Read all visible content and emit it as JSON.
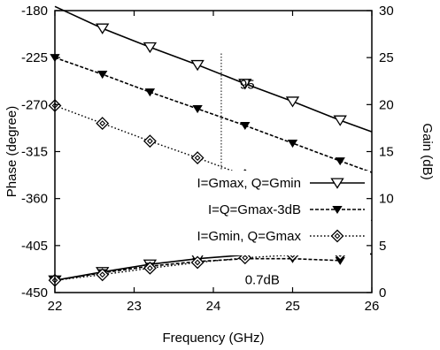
{
  "chart_data": {
    "type": "line",
    "x_axis": {
      "label": "Frequency (GHz)",
      "range": [
        22,
        26
      ],
      "ticks": [
        22,
        23,
        24,
        25,
        26
      ]
    },
    "y_left_axis": {
      "label": "Phase (degree)",
      "range": [
        -450,
        -180
      ],
      "ticks": [
        -180,
        -225,
        -270,
        -315,
        -360,
        -405,
        -450
      ]
    },
    "y_right_axis": {
      "label": "Gain (dB)",
      "range": [
        0,
        30
      ],
      "ticks": [
        0,
        5,
        10,
        15,
        20,
        25,
        30
      ]
    },
    "grid": false,
    "legend_position": "center-right",
    "series": [
      {
        "name": "I=Gmax, Q=Gmin",
        "axis": "left",
        "style": "solid",
        "marker": "triangle-down-open",
        "x": [
          22,
          22.6,
          23.2,
          23.8,
          24.4,
          25.0,
          25.6,
          26
        ],
        "values": [
          -176,
          -197,
          -215,
          -232,
          -250,
          -267,
          -285,
          -296
        ],
        "marker_x": [
          22.6,
          23.2,
          23.8,
          24.4,
          25.0,
          25.6
        ]
      },
      {
        "name": "I=Q=Gmax-3dB",
        "axis": "left",
        "style": "dashed",
        "marker": "triangle-down-filled",
        "x": [
          22,
          22.6,
          23.2,
          23.8,
          24.4,
          25.0,
          25.6,
          26
        ],
        "values": [
          -225,
          -241,
          -258,
          -274,
          -290,
          -307,
          -324,
          -335
        ],
        "marker_x": [
          22.0,
          22.6,
          23.2,
          23.8,
          24.4,
          25.0,
          25.6
        ]
      },
      {
        "name": "I=Gmin, Q=Gmax",
        "axis": "left",
        "style": "dotted",
        "marker": "diamond-open",
        "x": [
          22,
          22.6,
          23.2,
          23.8,
          24.4,
          25.0,
          25.6,
          26
        ],
        "values": [
          -271,
          -288,
          -305,
          -321,
          -338,
          -354,
          -371,
          -381
        ],
        "marker_x": [
          22.0,
          22.6,
          23.2,
          23.8,
          24.4,
          25.0,
          25.6
        ]
      },
      {
        "name": "I=Gmax, Q=Gmin",
        "axis": "right",
        "style": "solid",
        "marker": "triangle-down-open",
        "x": [
          22,
          22.6,
          23.2,
          23.8,
          24.4,
          25.0,
          25.6,
          26
        ],
        "values": [
          1.3,
          2.2,
          3.0,
          3.6,
          4.0,
          4.2,
          4.2,
          4.1
        ],
        "marker_x": [
          22.0,
          22.6,
          23.2,
          23.8,
          24.4,
          25.0,
          25.6
        ]
      },
      {
        "name": "I=Q=Gmax-3dB",
        "axis": "right",
        "style": "dashed",
        "marker": "triangle-down-filled",
        "x": [
          22,
          22.6,
          23.2,
          23.8,
          24.4,
          25.0,
          25.6
        ],
        "values": [
          1.3,
          2.1,
          2.8,
          3.3,
          3.6,
          3.6,
          3.4
        ],
        "marker_x": [
          22.0,
          22.6,
          23.2,
          23.8,
          24.4,
          25.0,
          25.6
        ]
      },
      {
        "name": "I=Gmin, Q=Gmax",
        "axis": "right",
        "style": "dotted",
        "marker": "diamond-open",
        "x": [
          22,
          22.6,
          23.2,
          23.8,
          24.4,
          25.0,
          25.6,
          26
        ],
        "values": [
          1.3,
          1.9,
          2.6,
          3.2,
          3.7,
          4.0,
          4.1,
          4.1
        ],
        "marker_x": [
          22.0,
          22.6,
          23.2,
          23.8,
          24.4,
          25.0,
          25.6
        ]
      }
    ],
    "annotations": [
      {
        "text": "95",
        "x": 24.2
      },
      {
        "text": "0.7dB",
        "x": 24.6
      }
    ]
  }
}
